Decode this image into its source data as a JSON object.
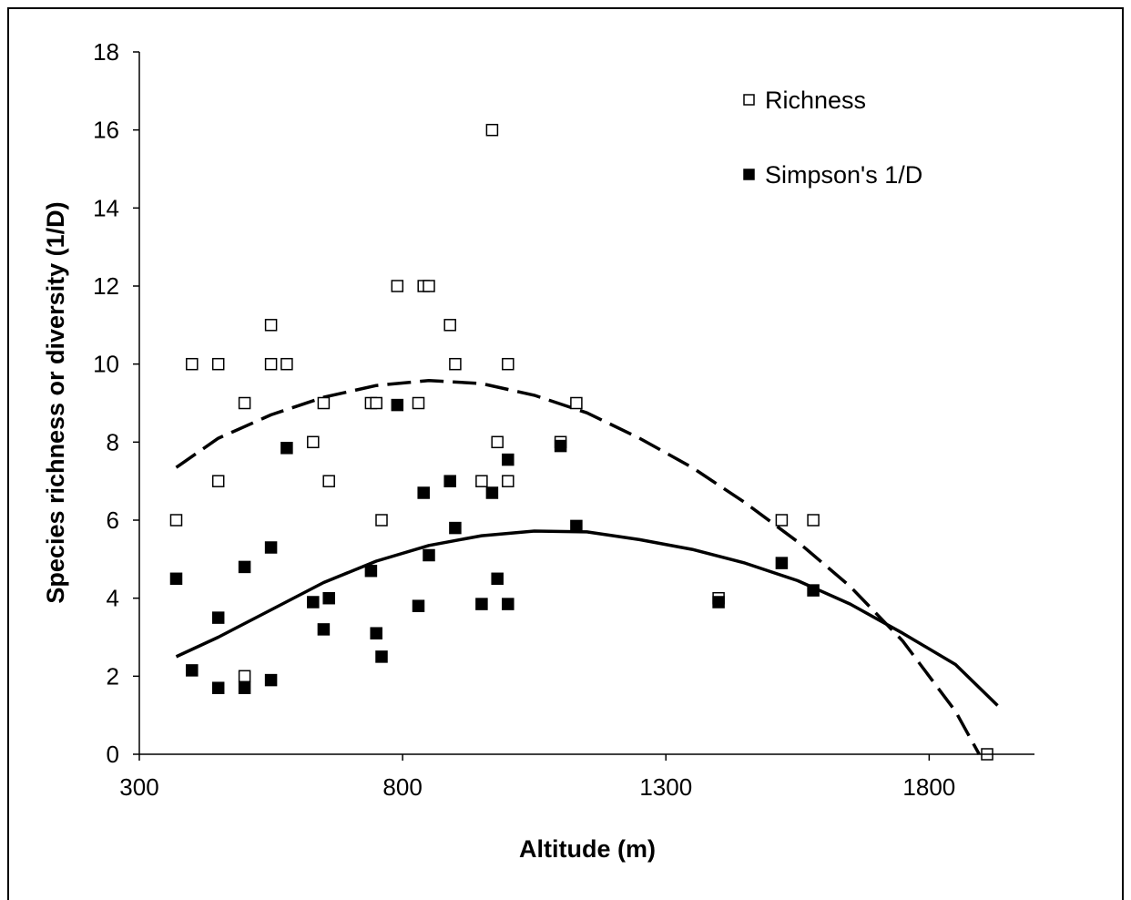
{
  "chart_data": {
    "type": "scatter",
    "title": "",
    "xlabel": "Altitude (m)",
    "ylabel": "Species richness or diversity (1/D)",
    "xlim": [
      300,
      2000
    ],
    "ylim": [
      0,
      18
    ],
    "x_ticks": [
      "300",
      "800",
      "1300",
      "1800"
    ],
    "y_ticks": [
      "0",
      "2",
      "4",
      "6",
      "8",
      "10",
      "12",
      "14",
      "16",
      "18"
    ],
    "grid": false,
    "legend_position": "top-right",
    "series": [
      {
        "name": "Richness",
        "marker": "open-square",
        "points": [
          [
            370,
            6
          ],
          [
            400,
            10
          ],
          [
            450,
            10
          ],
          [
            450,
            7
          ],
          [
            500,
            9
          ],
          [
            500,
            2
          ],
          [
            550,
            11
          ],
          [
            550,
            10
          ],
          [
            580,
            10
          ],
          [
            630,
            8
          ],
          [
            650,
            9
          ],
          [
            660,
            7
          ],
          [
            740,
            9
          ],
          [
            750,
            9
          ],
          [
            760,
            6
          ],
          [
            790,
            12
          ],
          [
            830,
            9
          ],
          [
            840,
            12
          ],
          [
            850,
            12
          ],
          [
            890,
            11
          ],
          [
            900,
            10
          ],
          [
            950,
            7
          ],
          [
            970,
            16
          ],
          [
            980,
            8
          ],
          [
            1000,
            10
          ],
          [
            1000,
            7
          ],
          [
            1100,
            8
          ],
          [
            1130,
            9
          ],
          [
            1400,
            4
          ],
          [
            1520,
            6
          ],
          [
            1580,
            6
          ],
          [
            1910,
            0
          ]
        ]
      },
      {
        "name": "Simpson's 1/D",
        "marker": "filled-square",
        "points": [
          [
            370,
            4.5
          ],
          [
            400,
            2.15
          ],
          [
            450,
            1.7
          ],
          [
            450,
            3.5
          ],
          [
            500,
            1.7
          ],
          [
            500,
            4.8
          ],
          [
            550,
            1.9
          ],
          [
            550,
            5.3
          ],
          [
            580,
            7.85
          ],
          [
            630,
            3.9
          ],
          [
            650,
            3.2
          ],
          [
            660,
            4.0
          ],
          [
            740,
            4.7
          ],
          [
            750,
            3.1
          ],
          [
            760,
            2.5
          ],
          [
            790,
            8.95
          ],
          [
            830,
            3.8
          ],
          [
            840,
            6.7
          ],
          [
            850,
            5.1
          ],
          [
            890,
            7.0
          ],
          [
            900,
            5.8
          ],
          [
            950,
            3.85
          ],
          [
            970,
            6.7
          ],
          [
            980,
            4.5
          ],
          [
            1000,
            3.85
          ],
          [
            1000,
            7.55
          ],
          [
            1100,
            7.9
          ],
          [
            1130,
            5.85
          ],
          [
            1400,
            3.9
          ],
          [
            1520,
            4.9
          ],
          [
            1580,
            4.2
          ]
        ]
      }
    ],
    "trendlines": [
      {
        "series": "Richness",
        "style": "dashed",
        "points": [
          [
            370,
            7.35
          ],
          [
            450,
            8.1
          ],
          [
            550,
            8.7
          ],
          [
            650,
            9.15
          ],
          [
            750,
            9.45
          ],
          [
            850,
            9.58
          ],
          [
            950,
            9.5
          ],
          [
            1050,
            9.2
          ],
          [
            1150,
            8.75
          ],
          [
            1250,
            8.1
          ],
          [
            1350,
            7.35
          ],
          [
            1450,
            6.45
          ],
          [
            1550,
            5.45
          ],
          [
            1650,
            4.3
          ],
          [
            1750,
            2.9
          ],
          [
            1850,
            1.1
          ],
          [
            1895,
            0
          ]
        ]
      },
      {
        "series": "Simpson's 1/D",
        "style": "solid",
        "points": [
          [
            370,
            2.5
          ],
          [
            450,
            3.0
          ],
          [
            550,
            3.7
          ],
          [
            650,
            4.4
          ],
          [
            750,
            4.95
          ],
          [
            850,
            5.35
          ],
          [
            950,
            5.6
          ],
          [
            1050,
            5.72
          ],
          [
            1150,
            5.7
          ],
          [
            1250,
            5.5
          ],
          [
            1350,
            5.25
          ],
          [
            1450,
            4.9
          ],
          [
            1550,
            4.45
          ],
          [
            1650,
            3.85
          ],
          [
            1750,
            3.1
          ],
          [
            1850,
            2.3
          ],
          [
            1930,
            1.25
          ]
        ]
      }
    ]
  }
}
